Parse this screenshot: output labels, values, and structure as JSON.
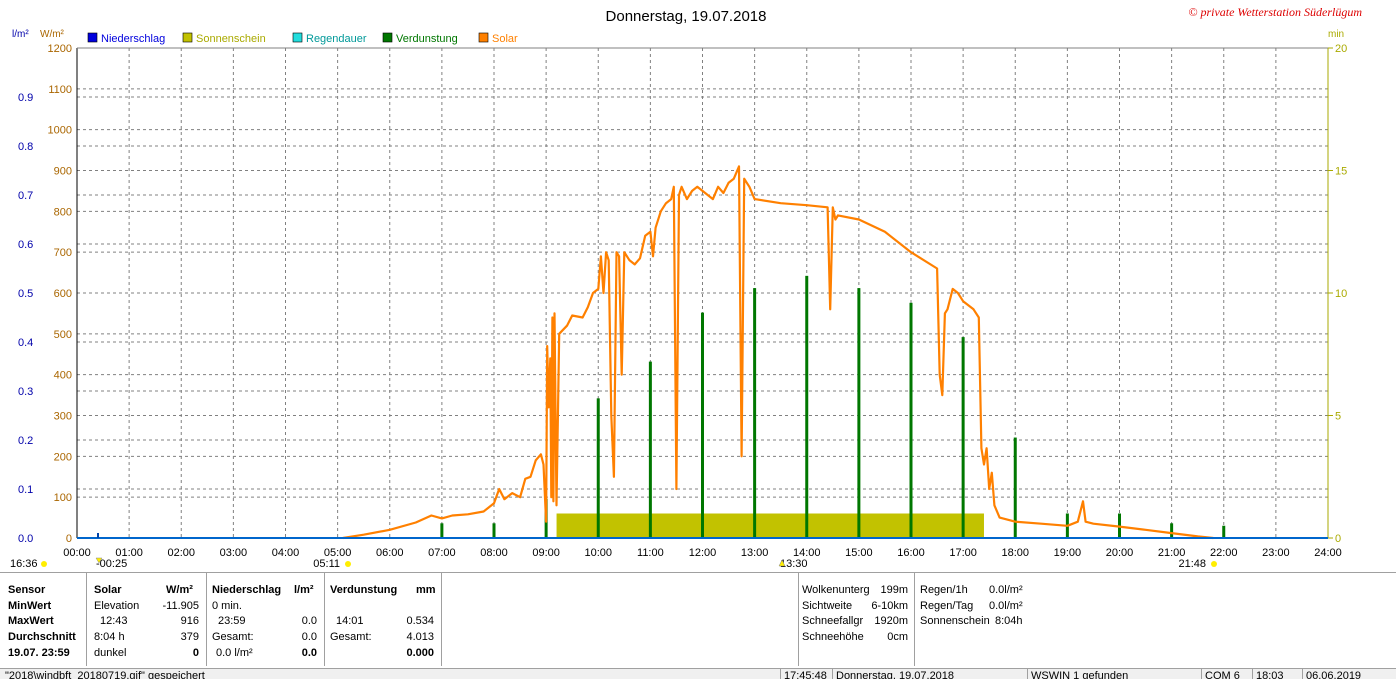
{
  "header": {
    "title": "Donnerstag, 19.07.2018",
    "copyright": "© private Wetterstation Süderlügum"
  },
  "legend": [
    {
      "label": "Niederschlag",
      "color": "#0000dd"
    },
    {
      "label": "Sonnenschein",
      "color": "#c2c200"
    },
    {
      "label": "Regendauer",
      "color": "#22dddd"
    },
    {
      "label": "Verdunstung",
      "color": "#007700"
    },
    {
      "label": "Solar",
      "color": "#ff8000"
    }
  ],
  "axis_units": {
    "left_outer": "l/m²",
    "left_inner": "W/m²",
    "right": "min"
  },
  "markers": {
    "sunrise_left": "16:36",
    "min_marker": "-00:25",
    "sunrise": "05:11",
    "noon": "13:30",
    "sunset": "21:48"
  },
  "colors": {
    "solar": "#ff8000",
    "verdunstung": "#007700",
    "sonnenschein": "#c2c200",
    "niederschlag": "#0066cc",
    "grid": "#808080",
    "left_outer_axis": "#0000aa",
    "left_inner_axis": "#aa6600",
    "right_axis": "#aaaa00"
  },
  "chart_data": {
    "type": "line",
    "title": "Donnerstag, 19.07.2018",
    "x_ticks": [
      "00:00",
      "01:00",
      "02:00",
      "03:00",
      "04:00",
      "05:00",
      "06:00",
      "07:00",
      "08:00",
      "09:00",
      "10:00",
      "11:00",
      "12:00",
      "13:00",
      "14:00",
      "15:00",
      "16:00",
      "17:00",
      "18:00",
      "19:00",
      "20:00",
      "21:00",
      "22:00",
      "23:00",
      "24:00"
    ],
    "x_range_hours": [
      0,
      24
    ],
    "y_left_outer": {
      "unit": "l/m²",
      "range": [
        0,
        1.0
      ],
      "ticks": [
        "0.0",
        "0.1",
        "0.2",
        "0.3",
        "0.4",
        "0.5",
        "0.6",
        "0.7",
        "0.8",
        "0.9"
      ]
    },
    "y_left_inner": {
      "unit": "W/m²",
      "range": [
        0,
        1200
      ],
      "ticks": [
        "0",
        "100",
        "200",
        "300",
        "400",
        "500",
        "600",
        "700",
        "800",
        "900",
        "1000",
        "1100",
        "1200"
      ]
    },
    "y_right": {
      "unit": "min",
      "range": [
        0,
        20
      ],
      "ticks": [
        "0",
        "5",
        "10",
        "15",
        "20"
      ]
    },
    "grid": true,
    "legend_position": "top",
    "series": [
      {
        "name": "Solar",
        "axis": "W/m²",
        "points": [
          [
            5.1,
            0
          ],
          [
            5.5,
            8
          ],
          [
            6.0,
            20
          ],
          [
            6.5,
            38
          ],
          [
            6.8,
            55
          ],
          [
            7.0,
            48
          ],
          [
            7.2,
            55
          ],
          [
            7.5,
            58
          ],
          [
            7.8,
            65
          ],
          [
            8.0,
            85
          ],
          [
            8.1,
            120
          ],
          [
            8.2,
            95
          ],
          [
            8.35,
            110
          ],
          [
            8.5,
            100
          ],
          [
            8.6,
            145
          ],
          [
            8.7,
            150
          ],
          [
            8.8,
            190
          ],
          [
            8.9,
            205
          ],
          [
            8.95,
            180
          ],
          [
            9.0,
            40
          ],
          [
            9.02,
            470
          ],
          [
            9.05,
            320
          ],
          [
            9.08,
            440
          ],
          [
            9.1,
            100
          ],
          [
            9.12,
            540
          ],
          [
            9.14,
            90
          ],
          [
            9.16,
            550
          ],
          [
            9.2,
            80
          ],
          [
            9.25,
            500
          ],
          [
            9.4,
            520
          ],
          [
            9.5,
            545
          ],
          [
            9.7,
            540
          ],
          [
            9.8,
            565
          ],
          [
            9.9,
            600
          ],
          [
            10.0,
            610
          ],
          [
            10.05,
            690
          ],
          [
            10.1,
            600
          ],
          [
            10.15,
            700
          ],
          [
            10.2,
            680
          ],
          [
            10.25,
            300
          ],
          [
            10.3,
            150
          ],
          [
            10.35,
            700
          ],
          [
            10.4,
            690
          ],
          [
            10.45,
            400
          ],
          [
            10.5,
            700
          ],
          [
            10.6,
            680
          ],
          [
            10.7,
            670
          ],
          [
            10.8,
            685
          ],
          [
            10.9,
            740
          ],
          [
            11.0,
            750
          ],
          [
            11.05,
            690
          ],
          [
            11.1,
            760
          ],
          [
            11.2,
            800
          ],
          [
            11.3,
            820
          ],
          [
            11.4,
            830
          ],
          [
            11.45,
            860
          ],
          [
            11.5,
            120
          ],
          [
            11.55,
            840
          ],
          [
            11.6,
            860
          ],
          [
            11.7,
            830
          ],
          [
            11.8,
            850
          ],
          [
            11.9,
            860
          ],
          [
            12.0,
            850
          ],
          [
            12.1,
            840
          ],
          [
            12.2,
            830
          ],
          [
            12.3,
            860
          ],
          [
            12.4,
            845
          ],
          [
            12.5,
            870
          ],
          [
            12.6,
            880
          ],
          [
            12.7,
            910
          ],
          [
            12.75,
            200
          ],
          [
            12.8,
            880
          ],
          [
            12.85,
            870
          ],
          [
            12.9,
            860
          ],
          [
            13.0,
            830
          ],
          [
            13.5,
            820
          ],
          [
            14.0,
            815
          ],
          [
            14.4,
            810
          ],
          [
            14.45,
            560
          ],
          [
            14.5,
            810
          ],
          [
            14.55,
            780
          ],
          [
            14.6,
            790
          ],
          [
            15.0,
            780
          ],
          [
            15.5,
            750
          ],
          [
            16.0,
            700
          ],
          [
            16.5,
            660
          ],
          [
            16.55,
            400
          ],
          [
            16.6,
            350
          ],
          [
            16.65,
            550
          ],
          [
            16.7,
            560
          ],
          [
            16.8,
            610
          ],
          [
            16.9,
            600
          ],
          [
            17.0,
            580
          ],
          [
            17.2,
            560
          ],
          [
            17.3,
            540
          ],
          [
            17.35,
            220
          ],
          [
            17.4,
            180
          ],
          [
            17.45,
            220
          ],
          [
            17.5,
            120
          ],
          [
            17.55,
            160
          ],
          [
            17.6,
            80
          ],
          [
            17.7,
            50
          ],
          [
            18.0,
            40
          ],
          [
            18.5,
            35
          ],
          [
            19.0,
            30
          ],
          [
            19.2,
            40
          ],
          [
            19.3,
            90
          ],
          [
            19.35,
            40
          ],
          [
            19.5,
            35
          ],
          [
            20.0,
            28
          ],
          [
            20.5,
            20
          ],
          [
            21.0,
            12
          ],
          [
            21.5,
            4
          ],
          [
            21.8,
            0
          ]
        ]
      },
      {
        "name": "Verdunstung",
        "axis": "min",
        "bars": [
          [
            7.0,
            0.6
          ],
          [
            8.0,
            0.6
          ],
          [
            9.0,
            1.6
          ],
          [
            10.0,
            5.7
          ],
          [
            11.0,
            7.2
          ],
          [
            12.0,
            9.2
          ],
          [
            13.0,
            10.2
          ],
          [
            14.0,
            10.7
          ],
          [
            15.0,
            10.2
          ],
          [
            16.0,
            9.6
          ],
          [
            17.0,
            8.2
          ],
          [
            18.0,
            4.1
          ],
          [
            19.0,
            1.0
          ],
          [
            20.0,
            1.0
          ],
          [
            21.0,
            0.6
          ],
          [
            22.0,
            0.5
          ]
        ]
      },
      {
        "name": "Sonnenschein",
        "axis": "min",
        "bars": [
          [
            9.2,
            17.4,
            1.0
          ]
        ]
      }
    ]
  },
  "stats": {
    "sensor": {
      "header": "Sensor",
      "rows": [
        "MinWert",
        "MaxWert",
        "Durchschnitt",
        "19.07. 23:59"
      ]
    },
    "solar": {
      "header": "Solar",
      "unit": "W/m²",
      "rows": [
        [
          "Elevation",
          "-11.905"
        ],
        [
          "12:43",
          "916"
        ],
        [
          "8:04 h",
          "379"
        ],
        [
          "dunkel",
          "0"
        ]
      ]
    },
    "niederschlag": {
      "header": "Niederschlag",
      "unit": "l/m²",
      "rows": [
        [
          "0 min.",
          ""
        ],
        [
          "23:59",
          "0.0"
        ],
        [
          "Gesamt:",
          "0.0"
        ],
        [
          "0.0 l/m²",
          "0.0"
        ]
      ]
    },
    "verdunstung": {
      "header": "Verdunstung",
      "unit": "mm",
      "rows": [
        [
          "",
          ""
        ],
        [
          "14:01",
          "0.534"
        ],
        [
          "Gesamt:",
          "4.013"
        ],
        [
          "",
          "0.000"
        ]
      ]
    },
    "weather": [
      [
        "Wolkenunterg",
        "199m"
      ],
      [
        "Sichtweite",
        "6-10km"
      ],
      [
        "Schneefallgr",
        "1920m"
      ],
      [
        "Schneehöhe",
        "0cm"
      ]
    ],
    "rain": [
      [
        "Regen/1h",
        "0.0l/m²"
      ],
      [
        "Regen/Tag",
        "0.0l/m²"
      ],
      [
        "Sonnenschein",
        "8:04h"
      ]
    ]
  },
  "status_bar": {
    "file": "\"2018\\windbft_20180719.gif\" gespeichert",
    "time": "17:45:48",
    "date": "Donnerstag, 19.07.2018",
    "wswin": "WSWIN 1 gefunden",
    "com": "COM 6",
    "clock": "18:03",
    "today": "06.06.2019"
  }
}
